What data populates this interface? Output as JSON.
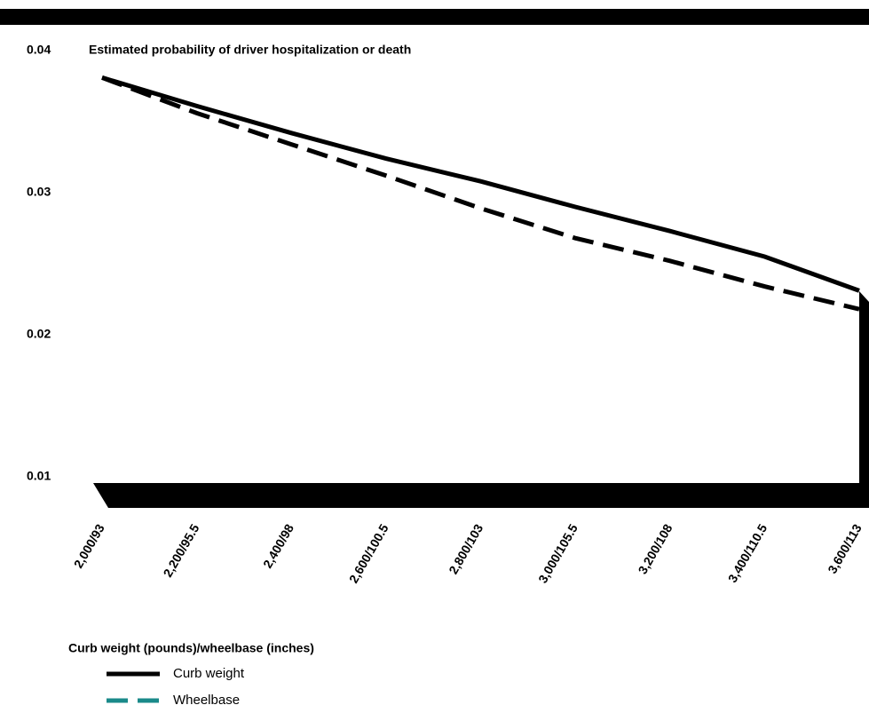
{
  "chart_data": {
    "type": "line",
    "title": "Estimated probability of driver hospitalization or death",
    "x_label": "Curb weight (pounds)/wheelbase (inches)",
    "categories": [
      "2,000/93",
      "2,200/95.5",
      "2,400/98",
      "2,600/100.5",
      "2,800/103",
      "3,000/105.5",
      "3,200/108",
      "3,400/110.5",
      "3,600/113"
    ],
    "series": [
      {
        "name": "Curb weight",
        "color": "#000000",
        "legend_color": "#000000",
        "dash": false,
        "values": [
          0.0381,
          0.0361,
          0.0342,
          0.0324,
          0.0308,
          0.029,
          0.0273,
          0.0255,
          0.0231
        ]
      },
      {
        "name": "Wheelbase",
        "color": "#000000",
        "legend_color": "#1a8a8a",
        "dash": true,
        "values": [
          0.0381,
          0.0356,
          0.0334,
          0.0312,
          0.0289,
          0.0268,
          0.0252,
          0.0234,
          0.0218
        ]
      }
    ],
    "ylim": [
      0.01,
      0.04
    ],
    "yticks": [
      0.04,
      0.03,
      0.02,
      0.01
    ],
    "grid": false
  }
}
